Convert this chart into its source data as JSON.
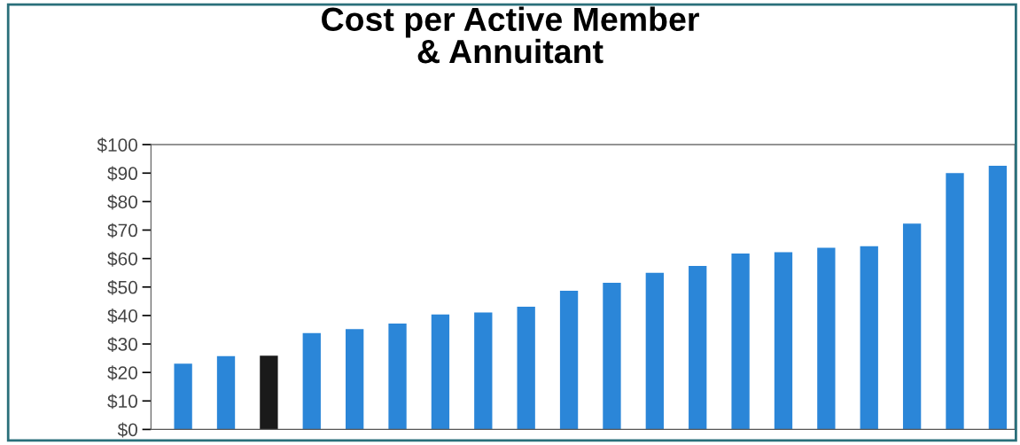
{
  "chart_data": {
    "type": "bar",
    "title": "Cost per Active Member\n& Annuitant",
    "categories": [
      null,
      null,
      null,
      null,
      null,
      null,
      null,
      null,
      null,
      null,
      null,
      null,
      null,
      null,
      null,
      null,
      null,
      null,
      null,
      null
    ],
    "values": [
      23.1,
      25.7,
      25.9,
      33.8,
      35.2,
      37.2,
      40.4,
      41.1,
      43.1,
      48.7,
      51.5,
      55,
      57.4,
      61.8,
      62.2,
      63.8,
      64.3,
      72.3,
      90,
      92.6
    ],
    "colors": [
      "#2b86d8",
      "#2b86d8",
      "#1a1a1a",
      "#2b86d8",
      "#2b86d8",
      "#2b86d8",
      "#2b86d8",
      "#2b86d8",
      "#2b86d8",
      "#2b86d8",
      "#2b86d8",
      "#2b86d8",
      "#2b86d8",
      "#2b86d8",
      "#2b86d8",
      "#2b86d8",
      "#2b86d8",
      "#2b86d8",
      "#2b86d8",
      "#2b86d8"
    ],
    "ylim": [
      0,
      100
    ],
    "yticks": [
      {
        "value": 0,
        "label": "$0"
      },
      {
        "value": 10,
        "label": "$10"
      },
      {
        "value": 20,
        "label": "$20"
      },
      {
        "value": 30,
        "label": "$30"
      },
      {
        "value": 40,
        "label": "$40"
      },
      {
        "value": 50,
        "label": "$50"
      },
      {
        "value": 60,
        "label": "$60"
      },
      {
        "value": 70,
        "label": "$70"
      },
      {
        "value": 80,
        "label": "$80"
      },
      {
        "value": 90,
        "label": "$90"
      },
      {
        "value": 100,
        "label": "$100"
      }
    ],
    "grid": false
  }
}
